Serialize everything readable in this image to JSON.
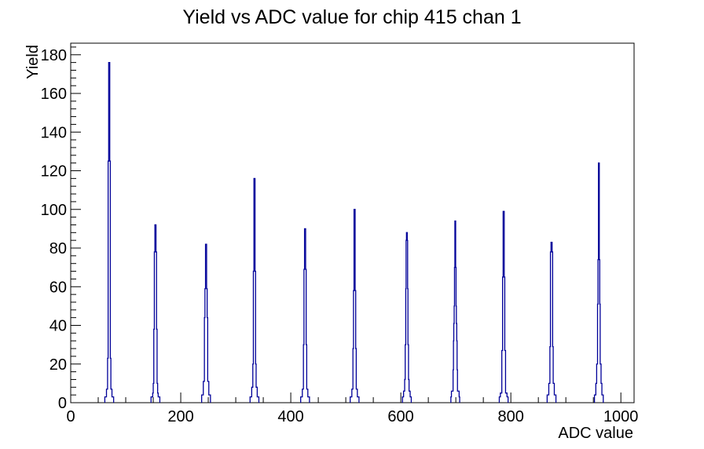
{
  "title": "Yield vs ADC value for chip 415 chan 1",
  "chart_data": {
    "type": "bar",
    "subtype": "histogram-spike-spectrum",
    "title": "Yield vs ADC value for chip 415 chan 1",
    "xlabel": "ADC value",
    "ylabel": "Yield",
    "xlim": [
      0,
      1024
    ],
    "ylim": [
      0,
      186
    ],
    "grid": false,
    "legend": false,
    "x_tick_labels": [
      0,
      200,
      400,
      600,
      800,
      1000
    ],
    "x_minor_step": 50,
    "y_tick_labels": [
      0,
      20,
      40,
      60,
      80,
      100,
      120,
      140,
      160,
      180
    ],
    "y_major_step": 20,
    "y_minor_step": 4,
    "line_color": "#000099",
    "axis_color": "#000000",
    "background_color": "#ffffff",
    "peak_centers_adc": [
      70,
      154,
      246,
      334,
      426,
      516,
      611,
      699,
      787,
      874,
      960
    ],
    "peak_heights": [
      176,
      92,
      82,
      116,
      90,
      100,
      88,
      94,
      99,
      83,
      124
    ],
    "peaks": [
      {
        "center": 70,
        "height": 176,
        "profile": [
          [
            8,
            3
          ],
          [
            5,
            7
          ],
          [
            3,
            23
          ],
          [
            2,
            125
          ],
          [
            1,
            176
          ]
        ]
      },
      {
        "center": 154,
        "height": 92,
        "profile": [
          [
            8,
            3
          ],
          [
            5,
            5
          ],
          [
            4,
            10
          ],
          [
            3,
            38
          ],
          [
            2,
            78
          ],
          [
            1,
            92
          ]
        ]
      },
      {
        "center": 246,
        "height": 82,
        "profile": [
          [
            8,
            4
          ],
          [
            5,
            11
          ],
          [
            3,
            44
          ],
          [
            2,
            59
          ],
          [
            1,
            82
          ]
        ]
      },
      {
        "center": 334,
        "height": 116,
        "profile": [
          [
            8,
            3
          ],
          [
            5,
            8
          ],
          [
            3,
            20
          ],
          [
            2,
            68
          ],
          [
            1,
            116
          ]
        ]
      },
      {
        "center": 426,
        "height": 90,
        "profile": [
          [
            8,
            3
          ],
          [
            5,
            7
          ],
          [
            3,
            30
          ],
          [
            2,
            69
          ],
          [
            1,
            90
          ]
        ]
      },
      {
        "center": 516,
        "height": 100,
        "profile": [
          [
            8,
            3
          ],
          [
            5,
            7
          ],
          [
            3,
            28
          ],
          [
            2,
            58
          ],
          [
            1,
            100
          ]
        ]
      },
      {
        "center": 611,
        "height": 88,
        "profile": [
          [
            8,
            3
          ],
          [
            6,
            6
          ],
          [
            4,
            12
          ],
          [
            3,
            30
          ],
          [
            2,
            59
          ],
          [
            1.4,
            84
          ],
          [
            0.7,
            88
          ]
        ]
      },
      {
        "center": 699,
        "height": 94,
        "profile": [
          [
            8,
            3
          ],
          [
            7,
            6
          ],
          [
            4,
            17
          ],
          [
            3.3,
            32
          ],
          [
            2.7,
            41
          ],
          [
            2,
            50
          ],
          [
            1.4,
            70
          ],
          [
            0.7,
            94
          ]
        ]
      },
      {
        "center": 787,
        "height": 99,
        "profile": [
          [
            8,
            3
          ],
          [
            6,
            5
          ],
          [
            3.4,
            27
          ],
          [
            2,
            65
          ],
          [
            1,
            99
          ]
        ]
      },
      {
        "center": 874,
        "height": 83,
        "profile": [
          [
            8,
            4
          ],
          [
            5,
            10
          ],
          [
            3,
            29
          ],
          [
            2,
            78
          ],
          [
            1,
            83
          ]
        ]
      },
      {
        "center": 960,
        "height": 124,
        "profile": [
          [
            8,
            4
          ],
          [
            5.5,
            10
          ],
          [
            4,
            20
          ],
          [
            2.4,
            51
          ],
          [
            1.6,
            74
          ],
          [
            0.8,
            124
          ]
        ]
      }
    ]
  }
}
